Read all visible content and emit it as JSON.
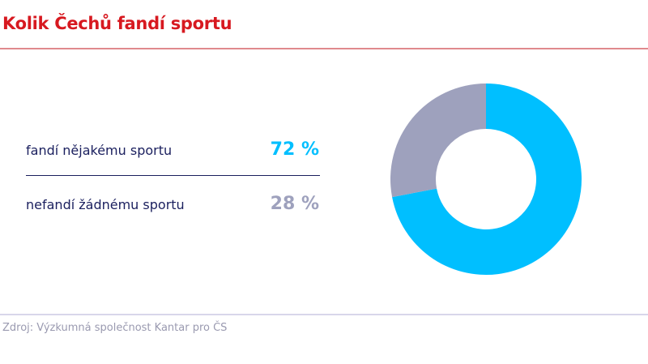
{
  "header": {
    "title": "Kolik Čechů fandí sportu"
  },
  "footer": {
    "source": "Zdroj: Výzkumná společnost Kantar pro ČS"
  },
  "chart_data": {
    "type": "pie",
    "variant": "donut",
    "title": "Kolik Čechů fandí sportu",
    "legend_placement": "left",
    "slices": [
      {
        "label": "fandí nějakému sportu",
        "value": 72,
        "display": "72 %",
        "color": "#00bfff"
      },
      {
        "label": "nefandí žádnému sportu",
        "value": 28,
        "display": "28 %",
        "color": "#9ea1bd"
      }
    ]
  }
}
